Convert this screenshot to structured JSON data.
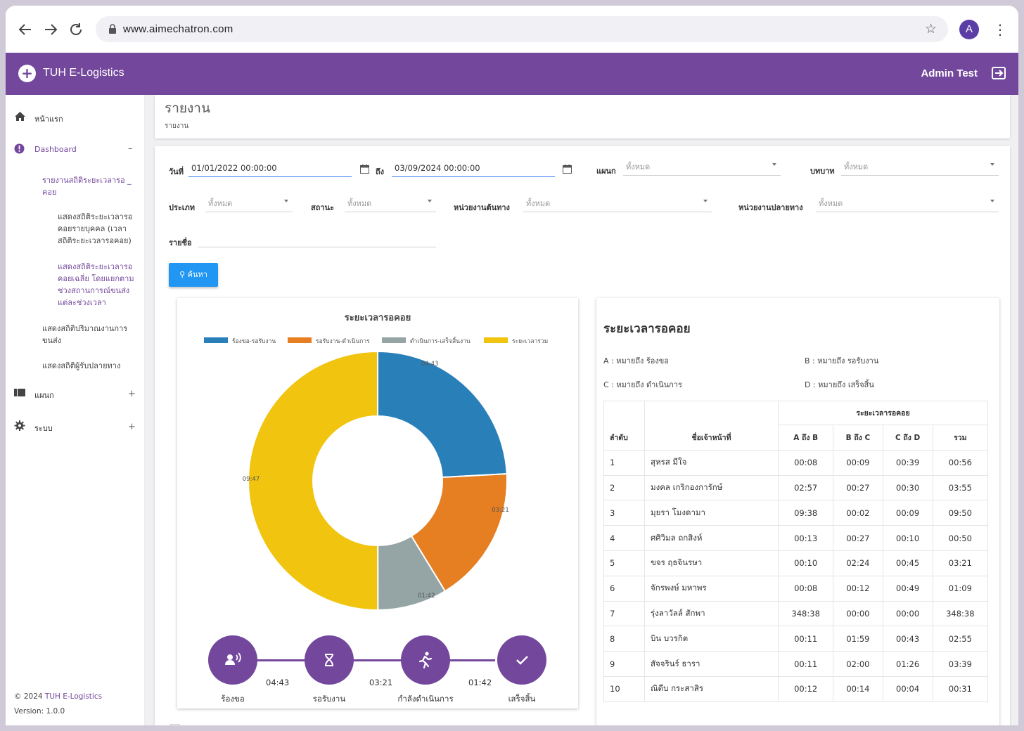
{
  "browser": {
    "url": "www.aimechatron.com",
    "profile_initial": "A"
  },
  "appbar": {
    "title": "TUH E-Logistics",
    "user": "Admin Test"
  },
  "sidebar": {
    "home": "หน้าแรก",
    "dashboard": "Dashboard",
    "dashboard_toggle": "–",
    "sub_active": "รายงานสถิติระยะเวลารอ _ คอย",
    "sub_items": [
      "แสดงสถิติระยะเวลารอคอยรายบุคคล (เวลาสถิติระยะเวลารอคอย)",
      "แสดงสถิติระยะเวลารอคอยเฉลี่ย โดยแยกตามช่วงสถานการณ์ขนส่งแต่ละช่วงเวลา"
    ],
    "items2": [
      "แสดงสถิติปริมาณงานการขนส่ง",
      "แสดงสถิติผู้รับปลายทาง"
    ],
    "dept": "แผนก",
    "system": "ระบบ",
    "plus": "+",
    "footer_copy": "© 2024",
    "footer_brand": "TUH E-Logistics",
    "footer_version": "Version: 1.0.0"
  },
  "page": {
    "title": "รายงาน",
    "breadcrumb": "รายงาน"
  },
  "filters": {
    "date_label": "วันที่",
    "date_from": "01/01/2022 00:00:00",
    "to_label": "ถึง",
    "date_to": "03/09/2024 00:00:00",
    "dept_label": "แผนก",
    "role_label": "บทบาท",
    "type_label": "ประเภท",
    "status_label": "สถานะ",
    "origin_label": "หน่วยงานต้นทาง",
    "dest_label": "หน่วยงานปลายทาง",
    "name_label": "รายชื่อ",
    "all": "ทั้งหมด",
    "search_btn": "ค้นหา"
  },
  "colors": {
    "primary": "#73479c",
    "blue": "#2980b9",
    "orange": "#e67e22",
    "gray": "#95a5a6",
    "yellow": "#f1c40f",
    "button": "#2196f3"
  },
  "chart_data": {
    "type": "pie",
    "title": "ระยะเวลารอคอย",
    "legend_position": "top",
    "series": [
      {
        "name": "ร้องขอ-รอรับงาน",
        "label": "04:43",
        "minutes": 4.72,
        "color": "#2980b9"
      },
      {
        "name": "รอรับงาน-ดำเนินการ",
        "label": "03:21",
        "minutes": 3.35,
        "color": "#e67e22"
      },
      {
        "name": "ดำเนินการ-เสร็จสิ้นงาน",
        "label": "01:42",
        "minutes": 1.7,
        "color": "#95a5a6"
      },
      {
        "name": "ระยะเวลารวม",
        "label": "09:47",
        "minutes": 9.78,
        "color": "#f1c40f"
      }
    ]
  },
  "steps": {
    "labels": [
      "ร้องขอ",
      "รอรับงาน",
      "กำลังดำเนินการ",
      "เสร็จสิ้น"
    ],
    "times": [
      "04:43",
      "03:21",
      "01:42"
    ]
  },
  "table_card": {
    "title": "ระยะเวลารอคอย",
    "legend": {
      "a": "A : หมายถึง ร้องขอ",
      "b": "B : หมายถึง รอรับงาน",
      "c": "C : หมายถึง ดำเนินการ",
      "d": "D : หมายถึง เสร็จสิ้น"
    },
    "group_header": "ระยะเวลารอคอย",
    "headers": [
      "ลำดับ",
      "ชื่อเจ้าหน้าที่",
      "A ถึง B",
      "B ถึง C",
      "C ถึง D",
      "รวม"
    ],
    "rows": [
      [
        "1",
        "สุหรส มีใจ",
        "00:08",
        "00:09",
        "00:39",
        "00:56"
      ],
      [
        "2",
        "มงคล เกริกองการักษ์",
        "02:57",
        "00:27",
        "00:30",
        "03:55"
      ],
      [
        "3",
        "มุยรา โมงดามา",
        "09:38",
        "00:02",
        "00:09",
        "09:50"
      ],
      [
        "4",
        "ศศิวิมล ถกสิงห์",
        "00:13",
        "00:27",
        "00:10",
        "00:50"
      ],
      [
        "5",
        "ขจร ฤธจินรษา",
        "00:10",
        "02:24",
        "00:45",
        "03:21"
      ],
      [
        "6",
        "จักรพงษ์ มหาพร",
        "00:08",
        "00:12",
        "00:49",
        "01:09"
      ],
      [
        "7",
        "รุ่งลาวัลล์ สักพา",
        "348:38",
        "00:00",
        "00:00",
        "348:38"
      ],
      [
        "8",
        "บิน บวรกิต",
        "00:11",
        "01:59",
        "00:43",
        "02:55"
      ],
      [
        "9",
        "สัจจรินร์ ธารา",
        "00:11",
        "02:00",
        "01:26",
        "03:39"
      ],
      [
        "10",
        "ณิดีบ กระสาสิร",
        "00:12",
        "00:14",
        "00:04",
        "00:31"
      ]
    ]
  }
}
